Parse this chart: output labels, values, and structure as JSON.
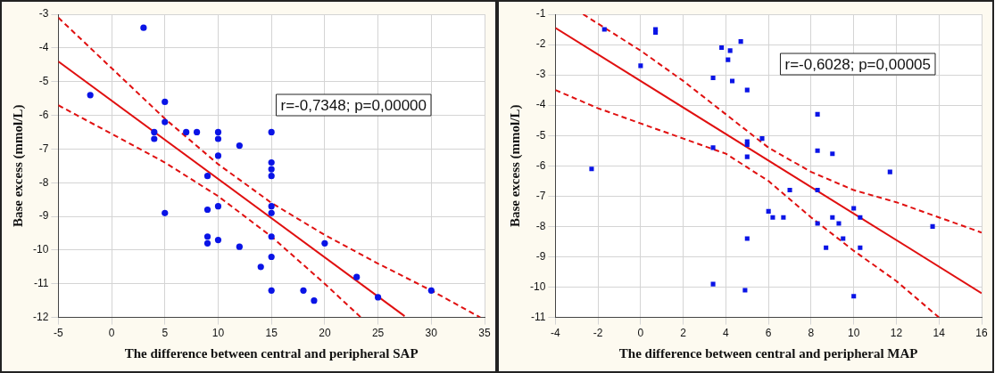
{
  "chart_data": [
    {
      "type": "scatter",
      "xlabel": "The difference between central and peripheral SAP",
      "ylabel": "Base excess (mmol/L)",
      "xlim": [
        -5,
        35
      ],
      "ylim": [
        -12,
        -3
      ],
      "xticks": [
        -5,
        0,
        5,
        10,
        15,
        20,
        25,
        30,
        35
      ],
      "yticks": [
        -12,
        -11,
        -10,
        -9,
        -8,
        -7,
        -6,
        -5,
        -4,
        -3
      ],
      "grid": true,
      "legend": false,
      "annotations": [
        "r=-0,7348; p=0,00000"
      ],
      "series": [
        {
          "marker": "circle",
          "color": "#0a14e6",
          "x": [
            3,
            -2,
            5,
            5,
            4,
            4,
            7,
            8,
            10,
            10,
            12,
            10,
            15,
            15,
            15,
            15,
            9,
            5,
            9,
            10,
            15,
            15,
            9,
            9,
            10,
            12,
            15,
            20,
            15,
            14,
            23,
            15,
            18,
            19,
            25,
            30
          ],
          "values": [
            -3.4,
            -5.4,
            -5.6,
            -6.2,
            -6.5,
            -6.7,
            -6.5,
            -6.5,
            -6.5,
            -6.7,
            -6.9,
            -7.2,
            -6.5,
            -7.4,
            -7.6,
            -7.8,
            -7.8,
            -8.9,
            -8.8,
            -8.7,
            -8.7,
            -8.9,
            -9.6,
            -9.8,
            -9.7,
            -9.9,
            -9.6,
            -9.8,
            -10.2,
            -10.5,
            -10.8,
            -11.2,
            -11.2,
            -11.5,
            -11.4,
            -11.2
          ]
        },
        {
          "type": "line",
          "marker": "none",
          "line_style": "solid",
          "color": "#e01010",
          "x": [
            -5,
            27.5
          ],
          "values": [
            -4.4,
            -11.96
          ]
        },
        {
          "type": "line",
          "marker": "none",
          "line_style": "dashed",
          "color": "#e01010",
          "x": [
            -5,
            0,
            5,
            10,
            15,
            20,
            25,
            30,
            34.6
          ],
          "values": [
            -3.1,
            -4.6,
            -6.1,
            -7.45,
            -8.6,
            -9.55,
            -10.4,
            -11.2,
            -12
          ]
        },
        {
          "type": "line",
          "marker": "none",
          "line_style": "dashed",
          "color": "#e01010",
          "x": [
            -5,
            0,
            5,
            10,
            15,
            20,
            23.4
          ],
          "values": [
            -5.7,
            -6.55,
            -7.4,
            -8.4,
            -9.6,
            -11,
            -12
          ]
        }
      ]
    },
    {
      "type": "scatter",
      "xlabel": "The difference between central and peripheral MAP",
      "ylabel": "Base excess (mmol/L)",
      "xlim": [
        -4,
        16
      ],
      "ylim": [
        -11,
        -1
      ],
      "xticks": [
        -4,
        -2,
        0,
        2,
        4,
        6,
        8,
        10,
        12,
        14,
        16
      ],
      "yticks": [
        -11,
        -10,
        -9,
        -8,
        -7,
        -6,
        -5,
        -4,
        -3,
        -2,
        -1
      ],
      "grid": true,
      "legend": false,
      "annotations": [
        "r=-0,6028; p=0,00005"
      ],
      "series": [
        {
          "marker": "square",
          "color": "#0a14e6",
          "x": [
            -1.7,
            0.7,
            0.7,
            0,
            -2.3,
            3.4,
            3.8,
            4.1,
            4.2,
            4.3,
            4.7,
            5,
            8.3,
            5,
            5,
            5.7,
            3.4,
            5,
            8.3,
            9,
            11.7,
            7,
            8.3,
            6,
            6.2,
            6.7,
            10,
            10.3,
            9,
            8.3,
            9.3,
            13.7,
            5,
            9.5,
            8.7,
            10.3,
            3.4,
            4.9,
            10
          ],
          "values": [
            -1.5,
            -1.5,
            -1.6,
            -2.7,
            -6.1,
            -3.1,
            -2.1,
            -2.5,
            -2.2,
            -3.2,
            -1.9,
            -3.5,
            -4.3,
            -5.2,
            -5.3,
            -5.1,
            -5.4,
            -5.7,
            -5.5,
            -5.6,
            -6.2,
            -6.8,
            -6.8,
            -7.5,
            -7.7,
            -7.7,
            -7.4,
            -7.7,
            -7.7,
            -7.9,
            -7.9,
            -8,
            -8.4,
            -8.4,
            -8.7,
            -8.7,
            -9.9,
            -10.1,
            -10.3
          ]
        },
        {
          "type": "line",
          "marker": "none",
          "line_style": "solid",
          "color": "#e01010",
          "x": [
            -4,
            16
          ],
          "values": [
            -1.45,
            -10.2
          ]
        },
        {
          "type": "line",
          "marker": "none",
          "line_style": "dashed",
          "color": "#e01010",
          "x": [
            -2.7,
            0,
            2,
            4,
            6,
            8,
            10,
            12,
            14,
            16
          ],
          "values": [
            -1,
            -2.2,
            -3.2,
            -4.3,
            -5.4,
            -6.2,
            -6.8,
            -7.2,
            -7.7,
            -8.2
          ]
        },
        {
          "type": "line",
          "marker": "none",
          "line_style": "dashed",
          "color": "#e01010",
          "x": [
            -4,
            -2,
            0,
            2,
            4,
            6,
            8,
            10,
            12,
            14
          ],
          "values": [
            -3.5,
            -4.1,
            -4.6,
            -5.1,
            -5.6,
            -6.5,
            -7.7,
            -8.8,
            -9.8,
            -11
          ]
        }
      ]
    }
  ]
}
